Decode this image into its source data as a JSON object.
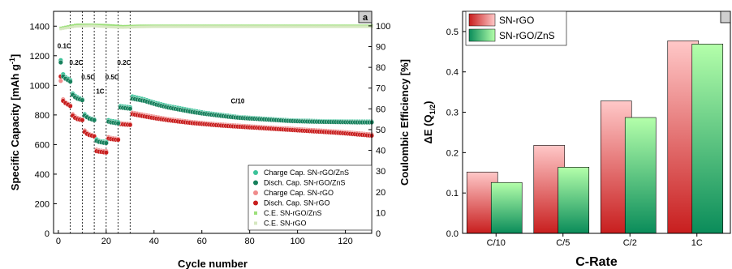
{
  "chart_data": [
    {
      "type": "scatter",
      "panel_label": "a",
      "xlabel": "Cycle number",
      "ylabel": "Specific Capacity [mAh g-1]",
      "ylabel_main": "Specific Capacity [mAh g",
      "ylabel_sup": "-1",
      "ylabel_end": "]",
      "y2label": "Coulombic Efficiency [%]",
      "xlim": [
        -2,
        131
      ],
      "ylim": [
        0,
        1500
      ],
      "y2lim": [
        0,
        107
      ],
      "xticks": [
        0,
        20,
        40,
        60,
        80,
        100,
        120
      ],
      "yticks": [
        0,
        200,
        400,
        600,
        800,
        1000,
        1200,
        1400
      ],
      "y2ticks": [
        0,
        10,
        20,
        30,
        40,
        50,
        60,
        70,
        80,
        90,
        100
      ],
      "rate_dividers": [
        5,
        10,
        15,
        20,
        25,
        30
      ],
      "annotations": [
        {
          "text": "0.1C",
          "x": 2.5,
          "y": 1250
        },
        {
          "text": "0.2C",
          "x": 7.5,
          "y": 1140
        },
        {
          "text": "0.5C",
          "x": 12.5,
          "y": 1040
        },
        {
          "text": "1C",
          "x": 17.5,
          "y": 945
        },
        {
          "text": "0.5C",
          "x": 22.5,
          "y": 1040
        },
        {
          "text": "0.2C",
          "x": 27.5,
          "y": 1140
        },
        {
          "text": "C/10",
          "x": 75,
          "y": 880
        }
      ],
      "series": [
        {
          "name": "Charge Cap. SN-rGO/ZnS",
          "color": "#3cc39a",
          "axis": "left",
          "segments": [
            {
              "x": [
                1,
                2,
                3,
                4,
                5
              ],
              "y": [
                1170,
                1075,
                1055,
                1045,
                1035
              ]
            },
            {
              "x": [
                6,
                7,
                8,
                9,
                10
              ],
              "y": [
                945,
                930,
                920,
                912,
                905
              ]
            },
            {
              "x": [
                11,
                12,
                13,
                14,
                15
              ],
              "y": [
                805,
                790,
                780,
                775,
                770
              ]
            },
            {
              "x": [
                16,
                17,
                18,
                19,
                20
              ],
              "y": [
                635,
                625,
                622,
                620,
                618
              ]
            },
            {
              "x": [
                21,
                22,
                23,
                24,
                25
              ],
              "y": [
                765,
                760,
                758,
                755,
                752
              ]
            },
            {
              "x": [
                26,
                27,
                28,
                29,
                30
              ],
              "y": [
                860,
                858,
                856,
                854,
                852
              ]
            },
            {
              "x_start": 31,
              "x_end": 131,
              "y": [
                925,
                905,
                880,
                860,
                845,
                830,
                815,
                805,
                795,
                785,
                780,
                775,
                770,
                765,
                762,
                760,
                758,
                757,
                756,
                755,
                755
              ]
            }
          ]
        },
        {
          "name": "Disch. Cap. SN-rGO/ZnS",
          "color": "#16805c",
          "axis": "left",
          "segments": [
            {
              "x": [
                1,
                2,
                3,
                4,
                5
              ],
              "y": [
                1155,
                1060,
                1045,
                1035,
                1025
              ]
            },
            {
              "x": [
                6,
                7,
                8,
                9,
                10
              ],
              "y": [
                935,
                920,
                910,
                905,
                900
              ]
            },
            {
              "x": [
                11,
                12,
                13,
                14,
                15
              ],
              "y": [
                795,
                785,
                775,
                770,
                765
              ]
            },
            {
              "x": [
                16,
                17,
                18,
                19,
                20
              ],
              "y": [
                625,
                618,
                615,
                612,
                610
              ]
            },
            {
              "x": [
                21,
                22,
                23,
                24,
                25
              ],
              "y": [
                755,
                750,
                748,
                745,
                743
              ]
            },
            {
              "x": [
                26,
                27,
                28,
                29,
                30
              ],
              "y": [
                850,
                848,
                846,
                844,
                842
              ]
            },
            {
              "x_start": 31,
              "x_end": 131,
              "y": [
                910,
                895,
                870,
                850,
                835,
                820,
                808,
                798,
                788,
                780,
                775,
                770,
                765,
                760,
                757,
                755,
                753,
                752,
                751,
                750,
                750
              ]
            }
          ]
        },
        {
          "name": "Charge Cap. SN-rGO",
          "color": "#f08c8c",
          "axis": "left",
          "segments": [
            {
              "x": [
                1,
                2,
                3,
                4,
                5
              ],
              "y": [
                1030,
                905,
                885,
                875,
                865
              ]
            },
            {
              "x": [
                6,
                7,
                8,
                9,
                10
              ],
              "y": [
                805,
                790,
                780,
                775,
                770
              ]
            },
            {
              "x": [
                11,
                12,
                13,
                14,
                15
              ],
              "y": [
                695,
                680,
                670,
                665,
                660
              ]
            },
            {
              "x": [
                16,
                17,
                18,
                19,
                20
              ],
              "y": [
                565,
                560,
                558,
                556,
                555
              ]
            },
            {
              "x": [
                21,
                22,
                23,
                24,
                25
              ],
              "y": [
                650,
                645,
                642,
                640,
                638
              ]
            },
            {
              "x": [
                26,
                27,
                28,
                29,
                30
              ],
              "y": [
                745,
                743,
                741,
                740,
                739
              ]
            },
            {
              "x_start": 31,
              "x_end": 131,
              "y": [
                815,
                800,
                785,
                772,
                762,
                752,
                745,
                738,
                732,
                727,
                722,
                717,
                712,
                708,
                703,
                698,
                693,
                688,
                682,
                675,
                668
              ]
            }
          ]
        },
        {
          "name": "Disch. Cap. SN-rGO",
          "color": "#c81e1e",
          "axis": "left",
          "segments": [
            {
              "x": [
                1,
                2,
                3,
                4,
                5
              ],
              "y": [
                1060,
                895,
                880,
                870,
                860
              ]
            },
            {
              "x": [
                6,
                7,
                8,
                9,
                10
              ],
              "y": [
                795,
                780,
                772,
                768,
                765
              ]
            },
            {
              "x": [
                11,
                12,
                13,
                14,
                15
              ],
              "y": [
                685,
                672,
                664,
                660,
                655
              ]
            },
            {
              "x": [
                16,
                17,
                18,
                19,
                20
              ],
              "y": [
                555,
                552,
                550,
                548,
                546
              ]
            },
            {
              "x": [
                21,
                22,
                23,
                24,
                25
              ],
              "y": [
                640,
                637,
                635,
                633,
                632
              ]
            },
            {
              "x": [
                26,
                27,
                28,
                29,
                30
              ],
              "y": [
                738,
                736,
                735,
                734,
                733
              ]
            },
            {
              "x_start": 31,
              "x_end": 131,
              "y": [
                805,
                790,
                776,
                764,
                754,
                745,
                738,
                731,
                725,
                720,
                715,
                710,
                705,
                700,
                695,
                690,
                685,
                680,
                674,
                667,
                660
              ]
            }
          ]
        },
        {
          "name": "C.E. SN-rGO/ZnS",
          "color": "#9ce07a",
          "axis": "right",
          "segments": [
            {
              "x_start": 1,
              "x_end": 131,
              "y": [
                99.0,
                100.5,
                100.5,
                100.3,
                99.8,
                100.0,
                100.0,
                100.0,
                100.0,
                100.0,
                100.0,
                100.0,
                100.0,
                100.0,
                100.0,
                100.0,
                100.0,
                100.0,
                100.0,
                100.0,
                100.0
              ]
            }
          ]
        },
        {
          "name": "C.E. SN-rGO",
          "color": "#d6e8c0",
          "axis": "right",
          "segments": [
            {
              "x_start": 1,
              "x_end": 131,
              "y": [
                98.5,
                99.8,
                100.0,
                99.5,
                99.2,
                99.5,
                99.6,
                99.6,
                99.6,
                99.6,
                99.6,
                99.6,
                99.6,
                99.6,
                99.6,
                99.6,
                99.6,
                99.6,
                99.6,
                99.6,
                99.6
              ]
            }
          ]
        }
      ]
    },
    {
      "type": "bar",
      "xlabel": "C-Rate",
      "ylabel": "ΔE (Q1/2)",
      "ylabel_main": "ΔE (Q",
      "ylabel_sub": "1/2",
      "ylabel_end": ")",
      "ylim": [
        0,
        0.55
      ],
      "yticks": [
        0.0,
        0.1,
        0.2,
        0.3,
        0.4,
        0.5
      ],
      "ytick_labels": [
        "0.0",
        "0.1",
        "0.2",
        "0.3",
        "0.4",
        "0.5"
      ],
      "categories": [
        "C/10",
        "C/5",
        "C/2",
        "1C"
      ],
      "series": [
        {
          "name": "SN-rGO",
          "values": [
            0.152,
            0.218,
            0.328,
            0.477
          ],
          "color_top": "#ffc8c8",
          "color_bottom": "#c81e1e"
        },
        {
          "name": "SN-rGO/ZnS",
          "values": [
            0.126,
            0.164,
            0.287,
            0.469
          ],
          "color_top": "#b4ffaa",
          "color_bottom": "#0a8c5a"
        }
      ]
    }
  ]
}
